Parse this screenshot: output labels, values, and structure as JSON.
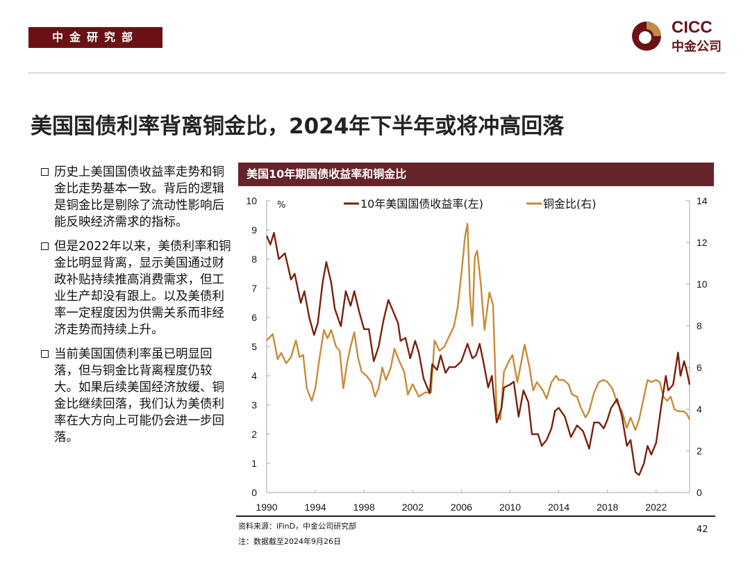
{
  "header": {
    "department": "中金研究部",
    "logo_text_en": "CICC",
    "logo_text_cn": "中金公司"
  },
  "title": "美国国债利率背离铜金比，2024年下半年或将冲高回落",
  "bullets": [
    "历史上美国国债收益率走势和铜金比走势基本一致。背后的逻辑是铜金比是剔除了流动性影响后能反映经济需求的指标。",
    "但是2022年以来，美债利率和铜金比明显背离，显示美国通过财政补贴持续推高消费需求，但工业生产却没有跟上。以及美债利率一定程度因为供需关系而非经济走势而持续上升。",
    "当前美国国债利率虽已明显回落，但与铜金比背离程度仍较大。如果后续美国经济放缓、铜金比继续回落，我们认为美债利率在大方向上可能仍会进一步回落。"
  ],
  "footer": {
    "source": "资料来源：iFinD，中金公司研究部",
    "note": "注：数据截至2024年9月26日",
    "page": "42"
  },
  "colors": {
    "brand": "#6b1116",
    "header_bar": "#65232a",
    "yield_line": "#7a1f0c",
    "ratio_line": "#c98a37"
  },
  "chart_data": {
    "type": "line",
    "title": "美国10年期国债收益率和铜金比",
    "ylabel_left": "%",
    "ylim_left": [
      0,
      10
    ],
    "ylim_right": [
      0,
      14
    ],
    "xlim": [
      1990,
      2024.75
    ],
    "yticks_left": [
      "0",
      "1",
      "2",
      "3",
      "4",
      "5",
      "6",
      "7",
      "8",
      "9",
      "10"
    ],
    "yticks_right": [
      "0",
      "2",
      "4",
      "6",
      "8",
      "10",
      "12",
      "14"
    ],
    "xticks": [
      "1990",
      "1994",
      "1998",
      "2002",
      "2006",
      "2010",
      "2014",
      "2018",
      "2022"
    ],
    "legend_position": "top",
    "grid": false,
    "series": [
      {
        "name": "10年美国国债收益率(左)",
        "axis": "left",
        "x": [
          1990.0,
          1990.3,
          1990.6,
          1991.0,
          1991.5,
          1992.0,
          1992.3,
          1992.8,
          1993.1,
          1993.5,
          1993.9,
          1994.2,
          1994.6,
          1994.9,
          1995.3,
          1995.6,
          1996.1,
          1996.5,
          1996.9,
          1997.2,
          1997.6,
          1998.0,
          1998.4,
          1998.8,
          1999.2,
          1999.6,
          2000.0,
          2000.4,
          2000.8,
          2001.0,
          2001.4,
          2001.8,
          2002.2,
          2002.5,
          2002.9,
          2003.4,
          2003.6,
          2004.0,
          2004.3,
          2004.7,
          2005.0,
          2005.5,
          2006.0,
          2006.5,
          2006.9,
          2007.2,
          2007.5,
          2007.8,
          2008.2,
          2008.5,
          2008.9,
          2009.3,
          2009.5,
          2010.0,
          2010.3,
          2010.7,
          2011.1,
          2011.5,
          2011.8,
          2012.3,
          2012.6,
          2013.0,
          2013.4,
          2013.7,
          2014.0,
          2014.5,
          2015.0,
          2015.5,
          2016.0,
          2016.5,
          2016.9,
          2017.3,
          2017.7,
          2018.0,
          2018.3,
          2018.8,
          2019.2,
          2019.6,
          2019.9,
          2020.3,
          2020.6,
          2021.0,
          2021.3,
          2021.6,
          2022.0,
          2022.4,
          2022.8,
          2023.0,
          2023.4,
          2023.8,
          2024.0,
          2024.3,
          2024.5,
          2024.75
        ],
        "values": [
          8.8,
          8.5,
          8.9,
          8.0,
          8.2,
          7.3,
          7.5,
          6.5,
          6.9,
          6.0,
          5.4,
          5.8,
          7.2,
          7.9,
          7.2,
          6.3,
          5.7,
          6.9,
          6.4,
          6.9,
          6.2,
          5.6,
          5.6,
          4.5,
          5.0,
          5.9,
          6.6,
          6.2,
          5.8,
          5.2,
          5.3,
          4.6,
          5.2,
          4.8,
          3.9,
          3.4,
          4.4,
          4.2,
          4.7,
          4.1,
          4.3,
          4.3,
          4.5,
          5.1,
          4.6,
          4.7,
          5.1,
          4.5,
          3.6,
          4.0,
          2.4,
          2.9,
          3.6,
          3.7,
          3.8,
          2.6,
          3.5,
          3.1,
          2.0,
          2.0,
          1.6,
          1.8,
          2.2,
          2.8,
          2.9,
          2.6,
          1.9,
          2.3,
          2.1,
          1.5,
          2.4,
          2.4,
          2.2,
          2.5,
          2.9,
          3.2,
          2.6,
          1.6,
          1.8,
          0.7,
          0.6,
          1.0,
          1.6,
          1.3,
          1.7,
          2.9,
          4.0,
          3.5,
          3.7,
          4.8,
          4.0,
          4.5,
          4.2,
          3.7
        ]
      },
      {
        "name": "铜金比(右)",
        "axis": "right",
        "x": [
          1990.0,
          1990.5,
          1990.9,
          1991.2,
          1991.6,
          1992.0,
          1992.4,
          1992.7,
          1993.0,
          1993.3,
          1993.7,
          1994.0,
          1994.3,
          1994.7,
          1995.0,
          1995.3,
          1995.7,
          1996.0,
          1996.3,
          1996.6,
          1996.9,
          1997.2,
          1997.5,
          1997.8,
          1998.2,
          1998.6,
          1998.9,
          1999.2,
          1999.5,
          1999.8,
          2000.2,
          2000.5,
          2000.9,
          2001.3,
          2001.6,
          2002.0,
          2002.5,
          2003.0,
          2003.5,
          2003.8,
          2004.2,
          2004.6,
          2005.0,
          2005.4,
          2005.7,
          2006.0,
          2006.3,
          2006.5,
          2006.7,
          2006.9,
          2007.1,
          2007.3,
          2007.6,
          2007.9,
          2008.3,
          2008.6,
          2008.9,
          2009.2,
          2009.5,
          2009.9,
          2010.2,
          2010.6,
          2010.9,
          2011.2,
          2011.6,
          2011.9,
          2012.2,
          2012.7,
          2013.0,
          2013.4,
          2013.8,
          2014.0,
          2014.4,
          2014.8,
          2015.1,
          2015.5,
          2015.8,
          2016.2,
          2016.5,
          2016.9,
          2017.3,
          2017.7,
          2018.0,
          2018.4,
          2018.8,
          2019.2,
          2019.6,
          2019.9,
          2020.3,
          2020.6,
          2021.0,
          2021.3,
          2021.6,
          2022.0,
          2022.3,
          2022.6,
          2022.9,
          2023.2,
          2023.5,
          2023.8,
          2024.2,
          2024.5,
          2024.75
        ],
        "values": [
          7.3,
          7.6,
          6.4,
          6.7,
          6.2,
          6.5,
          7.3,
          6.5,
          6.6,
          5.0,
          4.4,
          5.0,
          6.3,
          7.8,
          7.4,
          7.8,
          7.0,
          6.8,
          5.0,
          6.2,
          7.0,
          7.7,
          6.5,
          5.8,
          5.6,
          5.3,
          4.6,
          5.0,
          6.0,
          5.4,
          6.0,
          6.9,
          6.3,
          5.8,
          4.7,
          5.2,
          4.6,
          4.8,
          4.8,
          7.3,
          6.8,
          7.0,
          7.5,
          8.0,
          8.9,
          10.5,
          12.3,
          12.9,
          9.5,
          8.0,
          11.3,
          11.6,
          10.0,
          7.8,
          9.6,
          9.0,
          3.8,
          3.5,
          5.8,
          6.3,
          6.6,
          5.3,
          6.2,
          7.1,
          6.0,
          4.9,
          5.3,
          4.9,
          4.5,
          5.3,
          5.6,
          5.4,
          5.4,
          5.2,
          4.7,
          4.6,
          4.1,
          3.6,
          3.9,
          4.8,
          5.3,
          5.4,
          5.3,
          5.0,
          4.3,
          3.9,
          3.1,
          3.6,
          3.0,
          3.5,
          4.6,
          5.4,
          5.3,
          5.4,
          5.3,
          4.6,
          4.4,
          4.6,
          4.0,
          3.9,
          3.9,
          3.8,
          3.5
        ]
      }
    ]
  }
}
